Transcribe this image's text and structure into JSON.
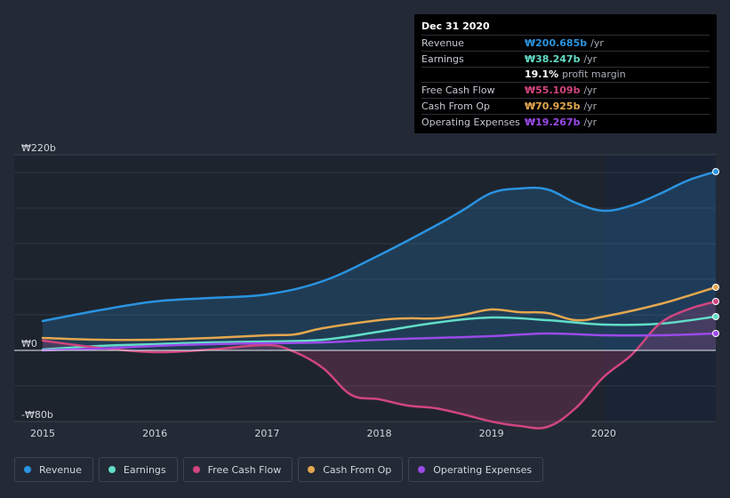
{
  "tooltip": {
    "date": "Dec 31 2020",
    "rows": [
      {
        "label": "Revenue",
        "value": "₩200.685b",
        "unit": "/yr",
        "color": "#2a93e0"
      },
      {
        "label": "Earnings",
        "value": "₩38.247b",
        "unit": "/yr",
        "color": "#62ddc8"
      },
      {
        "label": "",
        "value": "19.1%",
        "unit": "profit margin",
        "color": "#ffffff"
      },
      {
        "label": "Free Cash Flow",
        "value": "₩55.109b",
        "unit": "/yr",
        "color": "#d0457f"
      },
      {
        "label": "Cash From Op",
        "value": "₩70.925b",
        "unit": "/yr",
        "color": "#e3a74f"
      },
      {
        "label": "Operating Expenses",
        "value": "₩19.267b",
        "unit": "/yr",
        "color": "#9a4ae8"
      }
    ]
  },
  "legend": [
    {
      "label": "Revenue",
      "color": "#2a93e0"
    },
    {
      "label": "Earnings",
      "color": "#62ddc8"
    },
    {
      "label": "Free Cash Flow",
      "color": "#d0457f"
    },
    {
      "label": "Cash From Op",
      "color": "#e3a74f"
    },
    {
      "label": "Operating Expenses",
      "color": "#9a4ae8"
    }
  ],
  "chart_data": {
    "type": "area",
    "title": "",
    "xlabel": "",
    "ylabel": "",
    "ylim": [
      -80,
      220
    ],
    "y_tick_labels": [
      "₩220b",
      "₩0",
      "-₩80b"
    ],
    "y_ticks": [
      220,
      0,
      -80
    ],
    "x_tick_labels": [
      "2015",
      "2016",
      "2017",
      "2018",
      "2019",
      "2020"
    ],
    "x_ticks": [
      2015,
      2016,
      2017,
      2018,
      2019,
      2020
    ],
    "xlim": [
      2015,
      2021
    ],
    "highlight_from": 2020,
    "series": [
      {
        "name": "Revenue",
        "color": "#2a93e0",
        "filled": true,
        "x": [
          2015,
          2015.5,
          2016,
          2016.5,
          2017,
          2017.5,
          2018,
          2018.5,
          2018.75,
          2019,
          2019.25,
          2019.5,
          2019.75,
          2020,
          2020.25,
          2020.5,
          2020.75,
          2021
        ],
        "y": [
          33,
          45,
          55,
          59,
          63,
          78,
          107,
          140,
          158,
          177,
          182,
          181,
          166,
          157,
          163,
          176,
          191,
          201
        ]
      },
      {
        "name": "Earnings",
        "color": "#62ddc8",
        "filled": false,
        "x": [
          2015,
          2015.5,
          2016,
          2016.5,
          2017,
          2017.5,
          2018,
          2018.5,
          2019,
          2019.5,
          2020,
          2020.5,
          2021
        ],
        "y": [
          1,
          5,
          7,
          9,
          10,
          12,
          21,
          31,
          37,
          34,
          29,
          30,
          38
        ]
      },
      {
        "name": "Free Cash Flow",
        "color": "#d0457f",
        "filled": true,
        "x": [
          2015,
          2015.5,
          2016,
          2016.5,
          2017,
          2017.25,
          2017.5,
          2017.75,
          2018,
          2018.25,
          2018.5,
          2018.75,
          2019,
          2019.25,
          2019.5,
          2019.75,
          2020,
          2020.25,
          2020.5,
          2020.75,
          2021
        ],
        "y": [
          11,
          3,
          -2,
          1,
          6,
          -2,
          -20,
          -50,
          -55,
          -62,
          -65,
          -72,
          -80,
          -85,
          -86,
          -65,
          -30,
          -5,
          30,
          46,
          55
        ]
      },
      {
        "name": "Cash From Op",
        "color": "#e3a74f",
        "filled": false,
        "x": [
          2015,
          2015.5,
          2016,
          2016.5,
          2017,
          2017.25,
          2017.5,
          2018,
          2018.25,
          2018.5,
          2018.75,
          2019,
          2019.25,
          2019.5,
          2019.75,
          2020,
          2020.5,
          2021
        ],
        "y": [
          14,
          12,
          12,
          14,
          17,
          18,
          25,
          34,
          36,
          36,
          40,
          46,
          43,
          42,
          34,
          38,
          52,
          71
        ]
      },
      {
        "name": "Operating Expenses",
        "color": "#9a4ae8",
        "filled": false,
        "x": [
          2015,
          2015.5,
          2016,
          2016.5,
          2017,
          2017.5,
          2018,
          2018.5,
          2019,
          2019.5,
          2020,
          2020.5,
          2021
        ],
        "y": [
          0,
          2,
          5,
          7,
          8,
          9,
          12,
          14,
          16,
          19,
          17,
          17,
          19
        ]
      }
    ]
  }
}
